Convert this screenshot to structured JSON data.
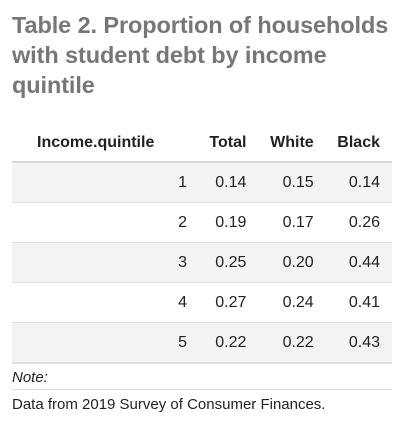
{
  "caption": "Table 2. Proportion of households with student debt by income quintile",
  "table": {
    "columns": [
      "Income.quintile",
      "Total",
      "White",
      "Black"
    ],
    "rows": [
      [
        "1",
        "0.14",
        "0.15",
        "0.14"
      ],
      [
        "2",
        "0.19",
        "0.17",
        "0.26"
      ],
      [
        "3",
        "0.25",
        "0.20",
        "0.44"
      ],
      [
        "4",
        "0.27",
        "0.24",
        "0.41"
      ],
      [
        "5",
        "0.22",
        "0.22",
        "0.43"
      ]
    ]
  },
  "footnote": {
    "label": "Note:",
    "text": "Data from 2019 Survey of Consumer Finances."
  }
}
